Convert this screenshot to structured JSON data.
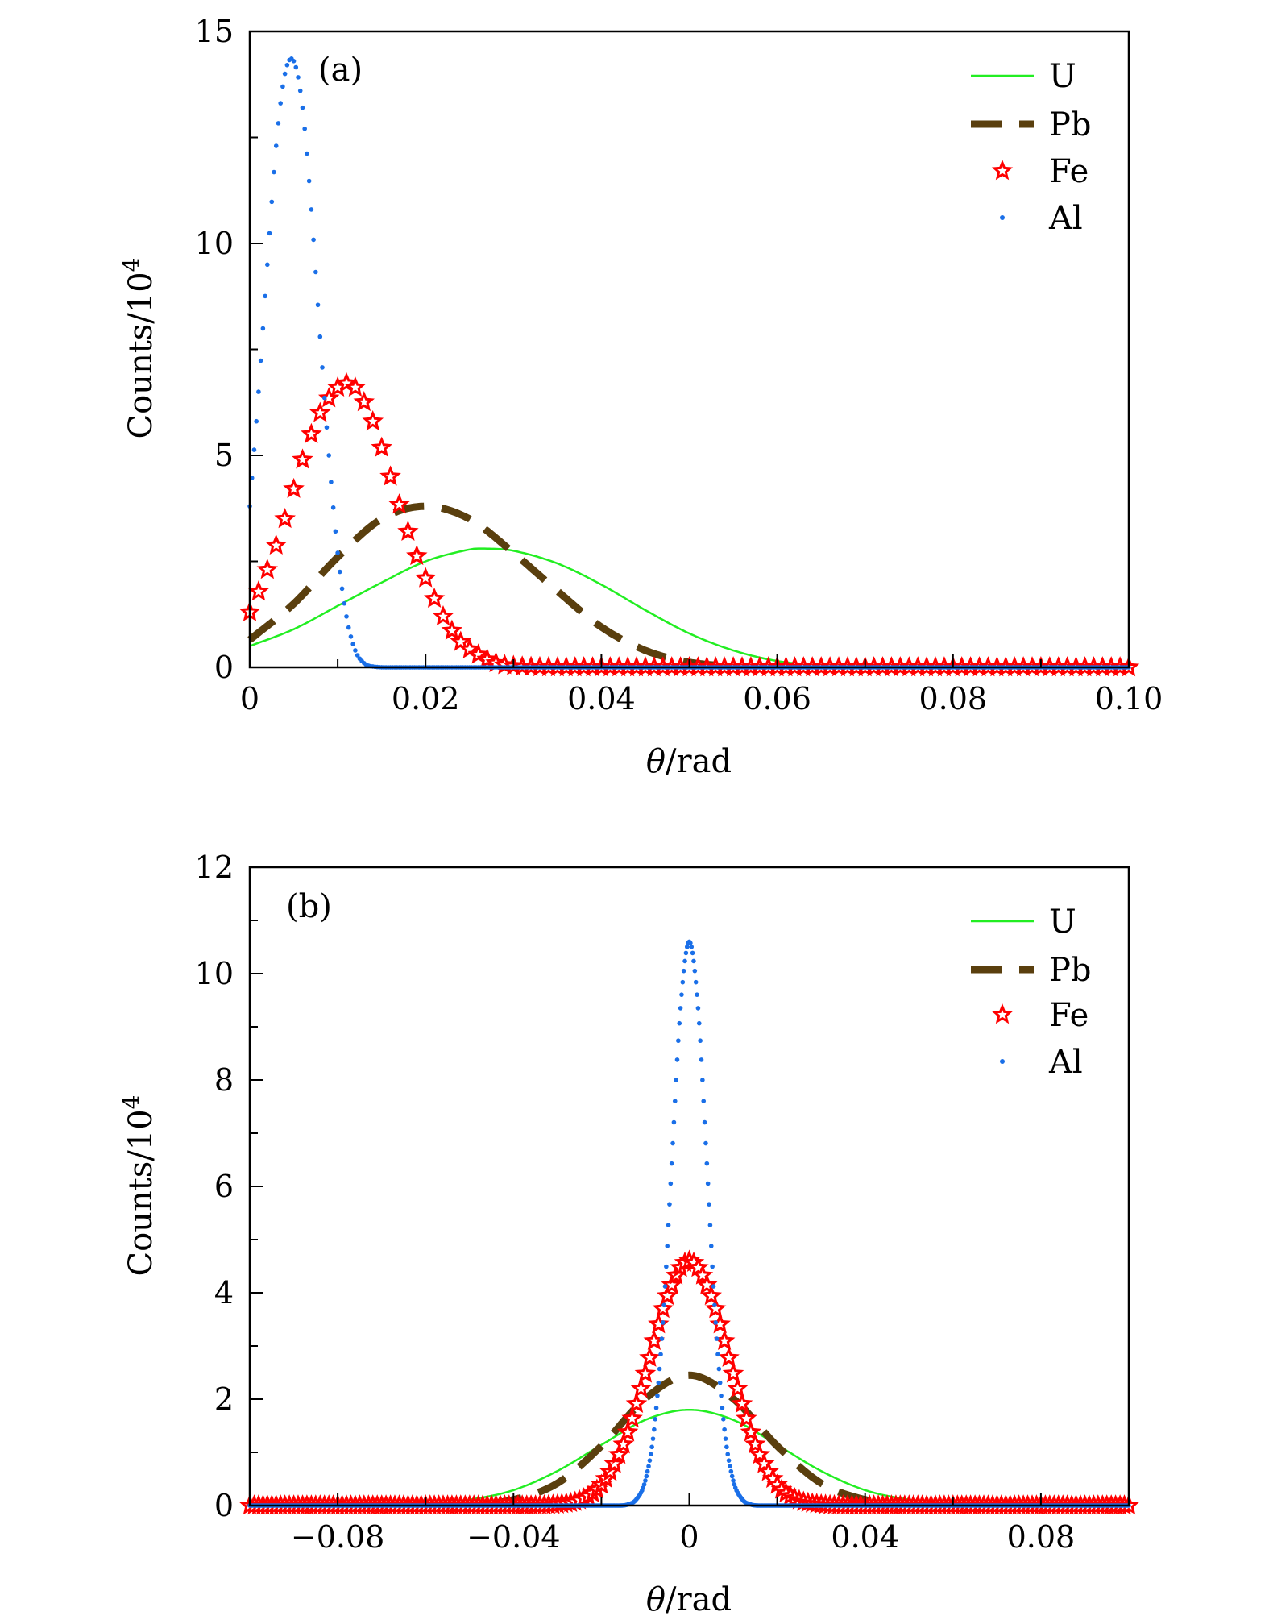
{
  "colors": {
    "U": "#22ee22",
    "Pb": "#5a3f0e",
    "Fe": "#ff0000",
    "Al": "#1a6fe8",
    "axis": "#000000"
  },
  "chart_data": [
    {
      "type": "line",
      "panel_label": "(a)",
      "xlabel_var": "θ",
      "xlabel_unit": "/rad",
      "ylabel_base": "Counts/10",
      "ylabel_exp": "4",
      "xlim": [
        0,
        0.1
      ],
      "ylim": [
        0,
        15
      ],
      "xticks": [
        0,
        0.02,
        0.04,
        0.06,
        0.08,
        0.1
      ],
      "xtick_labels": [
        "0",
        "0.02",
        "0.04",
        "0.06",
        "0.08",
        "0.10"
      ],
      "yticks": [
        0,
        5,
        10,
        15
      ],
      "ytick_labels": [
        "0",
        "5",
        "10",
        "15"
      ],
      "legend_position": "top-right",
      "series": [
        {
          "name": "U",
          "style": "solid",
          "x": [
            0,
            0.005,
            0.01,
            0.015,
            0.02,
            0.025,
            0.027,
            0.03,
            0.035,
            0.04,
            0.045,
            0.05,
            0.055,
            0.06,
            0.065,
            0.07,
            0.1
          ],
          "y": [
            0.5,
            0.9,
            1.45,
            2.0,
            2.5,
            2.78,
            2.8,
            2.75,
            2.45,
            1.95,
            1.35,
            0.8,
            0.4,
            0.15,
            0.05,
            0,
            0
          ]
        },
        {
          "name": "Pb",
          "style": "dashed",
          "x": [
            0,
            0.005,
            0.01,
            0.015,
            0.02,
            0.025,
            0.03,
            0.035,
            0.04,
            0.045,
            0.05,
            0.055,
            0.06,
            0.1
          ],
          "y": [
            0.65,
            1.5,
            2.6,
            3.5,
            3.8,
            3.5,
            2.7,
            1.8,
            0.95,
            0.4,
            0.12,
            0.03,
            0,
            0
          ]
        },
        {
          "name": "Fe",
          "style": "star",
          "x": [
            0,
            0.002,
            0.004,
            0.006,
            0.008,
            0.01,
            0.011,
            0.012,
            0.014,
            0.016,
            0.018,
            0.02,
            0.022,
            0.024,
            0.026,
            0.028,
            0.03,
            0.035,
            0.1
          ],
          "y": [
            1.3,
            2.3,
            3.5,
            4.9,
            6.0,
            6.6,
            6.7,
            6.6,
            5.8,
            4.5,
            3.2,
            2.1,
            1.2,
            0.6,
            0.3,
            0.1,
            0.03,
            0,
            0
          ]
        },
        {
          "name": "Al",
          "style": "dot",
          "x": [
            0,
            0.001,
            0.002,
            0.003,
            0.004,
            0.005,
            0.006,
            0.007,
            0.008,
            0.009,
            0.01,
            0.011,
            0.012,
            0.013,
            0.014,
            0.016,
            0.1
          ],
          "y": [
            3.8,
            6.5,
            9.5,
            12.3,
            14.0,
            14.3,
            13.2,
            10.8,
            7.8,
            5.0,
            2.7,
            1.2,
            0.4,
            0.1,
            0.02,
            0,
            0
          ]
        }
      ]
    },
    {
      "type": "line",
      "panel_label": "(b)",
      "xlabel_var": "θ",
      "xlabel_unit": "/rad",
      "ylabel_base": "Counts/10",
      "ylabel_exp": "4",
      "xlim": [
        -0.1,
        0.1
      ],
      "ylim": [
        0,
        12
      ],
      "xticks": [
        -0.08,
        -0.04,
        0,
        0.04,
        0.08
      ],
      "xtick_labels": [
        "−0.08",
        "−0.04",
        "0",
        "0.04",
        "0.08"
      ],
      "yticks": [
        0,
        2,
        4,
        6,
        8,
        10,
        12
      ],
      "ytick_labels": [
        "0",
        "2",
        "4",
        "6",
        "8",
        "10",
        "12"
      ],
      "legend_position": "top-right",
      "series": [
        {
          "name": "U",
          "style": "solid",
          "x": [
            -0.1,
            -0.07,
            -0.06,
            -0.05,
            -0.04,
            -0.03,
            -0.02,
            -0.01,
            0,
            0.01,
            0.02,
            0.03,
            0.04,
            0.05,
            0.06,
            0.07,
            0.1
          ],
          "y": [
            0,
            0,
            0.03,
            0.11,
            0.29,
            0.65,
            1.14,
            1.61,
            1.8,
            1.61,
            1.14,
            0.65,
            0.29,
            0.11,
            0.03,
            0,
            0
          ]
        },
        {
          "name": "Pb",
          "style": "dashed",
          "x": [
            -0.1,
            -0.06,
            -0.05,
            -0.04,
            -0.03,
            -0.02,
            -0.01,
            0,
            0.01,
            0.02,
            0.03,
            0.04,
            0.05,
            0.06,
            0.1
          ],
          "y": [
            0,
            0,
            0.01,
            0.11,
            0.42,
            1.12,
            2.01,
            2.45,
            2.01,
            1.12,
            0.42,
            0.11,
            0.01,
            0,
            0
          ]
        },
        {
          "name": "Fe",
          "style": "star",
          "x": [
            -0.1,
            -0.035,
            -0.03,
            -0.025,
            -0.02,
            -0.015,
            -0.01,
            -0.005,
            0,
            0.005,
            0.01,
            0.015,
            0.02,
            0.025,
            0.03,
            0.035,
            0.1
          ],
          "y": [
            0,
            0,
            0.02,
            0.1,
            0.39,
            1.15,
            2.48,
            3.94,
            4.6,
            3.94,
            2.48,
            1.15,
            0.39,
            0.1,
            0.02,
            0,
            0
          ]
        },
        {
          "name": "Al",
          "style": "dot",
          "x": [
            -0.1,
            -0.016,
            -0.014,
            -0.012,
            -0.01,
            -0.008,
            -0.006,
            -0.004,
            -0.002,
            0,
            0.002,
            0.004,
            0.006,
            0.008,
            0.01,
            0.012,
            0.014,
            0.016,
            0.1
          ],
          "y": [
            0,
            0,
            0.02,
            0.12,
            0.47,
            1.43,
            3.44,
            6.43,
            9.35,
            10.6,
            9.35,
            6.43,
            3.44,
            1.43,
            0.47,
            0.12,
            0.02,
            0,
            0
          ]
        }
      ]
    }
  ]
}
